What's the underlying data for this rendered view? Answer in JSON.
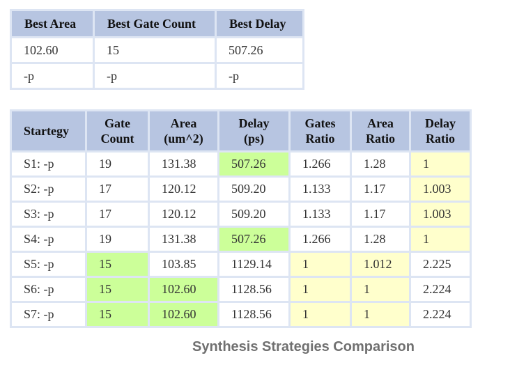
{
  "best_table": {
    "headers": [
      "Best Area",
      "Best Gate Count",
      "Best Delay"
    ],
    "rows": [
      [
        "102.60",
        "15",
        "507.26"
      ],
      [
        "-p",
        "-p",
        "-p"
      ]
    ]
  },
  "strategy_table": {
    "headers": [
      [
        "Startegy"
      ],
      [
        "Gate",
        "Count"
      ],
      [
        "Area",
        "(um^2)"
      ],
      [
        "Delay",
        "(ps)"
      ],
      [
        "Gates",
        "Ratio"
      ],
      [
        "Area",
        "Ratio"
      ],
      [
        "Delay",
        "Ratio"
      ]
    ],
    "rows": [
      [
        "S1: -p",
        "19",
        "131.38",
        "507.26",
        "1.266",
        "1.28",
        "1"
      ],
      [
        "S2: -p",
        "17",
        "120.12",
        "509.20",
        "1.133",
        "1.17",
        "1.003"
      ],
      [
        "S3: -p",
        "17",
        "120.12",
        "509.20",
        "1.133",
        "1.17",
        "1.003"
      ],
      [
        "S4: -p",
        "19",
        "131.38",
        "507.26",
        "1.266",
        "1.28",
        "1"
      ],
      [
        "S5: -p",
        "15",
        "103.85",
        "1129.14",
        "1",
        "1.012",
        "2.225"
      ],
      [
        "S6: -p",
        "15",
        "102.60",
        "1128.56",
        "1",
        "1",
        "2.224"
      ],
      [
        "S7: -p",
        "15",
        "102.60",
        "1128.56",
        "1",
        "1",
        "2.224"
      ]
    ],
    "highlights": [
      [
        "none",
        "none",
        "none",
        "green",
        "none",
        "none",
        "yellow"
      ],
      [
        "none",
        "none",
        "none",
        "none",
        "none",
        "none",
        "yellow"
      ],
      [
        "none",
        "none",
        "none",
        "none",
        "none",
        "none",
        "yellow"
      ],
      [
        "none",
        "none",
        "none",
        "green",
        "none",
        "none",
        "yellow"
      ],
      [
        "none",
        "green",
        "none",
        "none",
        "yellow",
        "yellow",
        "none"
      ],
      [
        "none",
        "green",
        "green",
        "none",
        "yellow",
        "yellow",
        "none"
      ],
      [
        "none",
        "green",
        "green",
        "none",
        "yellow",
        "yellow",
        "none"
      ]
    ]
  },
  "colors": {
    "header_bg": "#b7c5e1",
    "table_border": "#dde5f3",
    "best_green": "#ccff99",
    "best_ratio_yellow": "#ffffcc",
    "caption": "#707070"
  },
  "caption": "Synthesis Strategies Comparison"
}
